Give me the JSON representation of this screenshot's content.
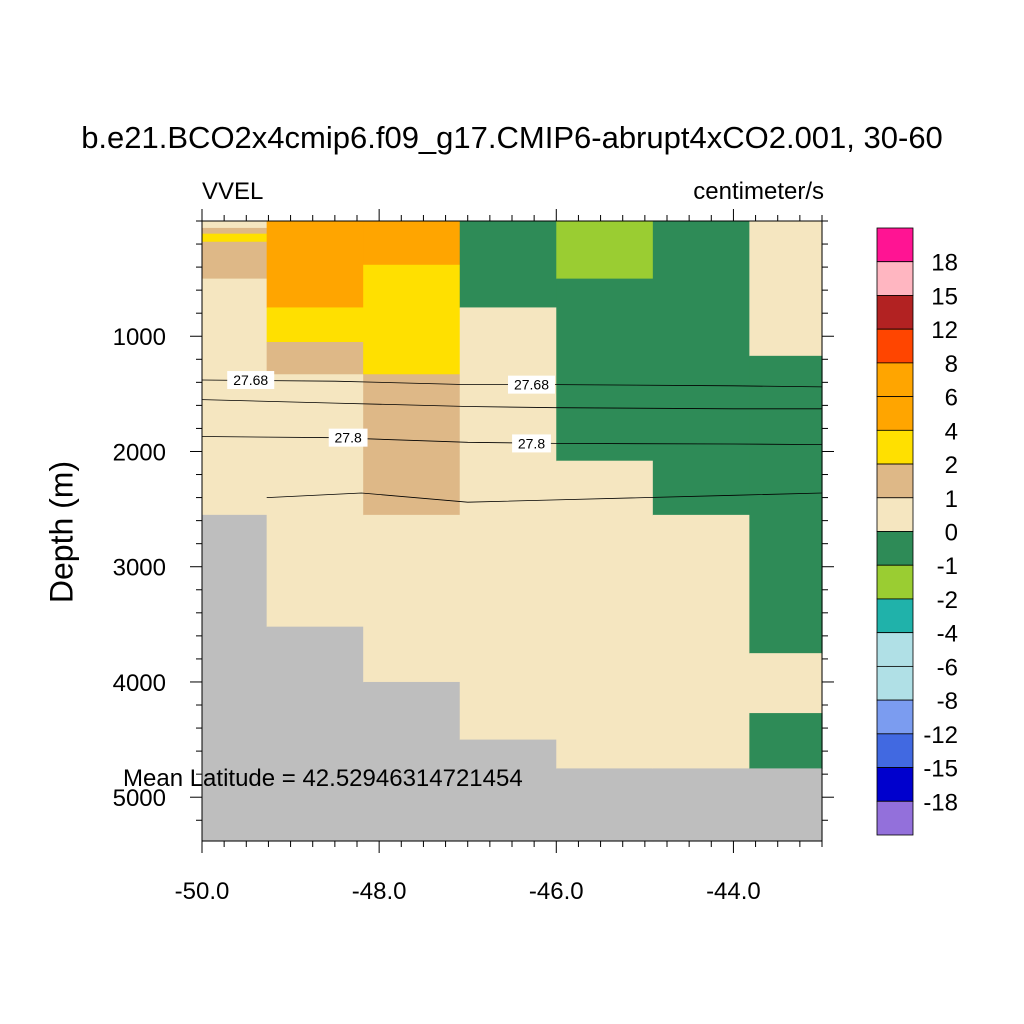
{
  "chart_data": {
    "type": "heatmap",
    "title": "b.e21.BCO2x4cmip6.f09_g17.CMIP6-abrupt4xCO2.001, 30-60",
    "variable": "VVEL",
    "units": "centimeter/s",
    "ylabel": "Depth (m)",
    "xlabel": "",
    "xlim": [
      -50.0,
      -43.0
    ],
    "ylim": [
      5380,
      0
    ],
    "x_ticks": [
      "-50.0",
      "-48.0",
      "-46.0",
      "-44.0"
    ],
    "x_tick_values": [
      -50.0,
      -48.0,
      -46.0,
      -44.0
    ],
    "y_ticks": [
      "1000",
      "2000",
      "3000",
      "4000",
      "5000"
    ],
    "y_tick_values": [
      1000,
      2000,
      3000,
      4000,
      5000
    ],
    "annotation": "Mean Latitude = 42.52946314721454",
    "missing_color": "#BEBEBE",
    "colorbar": {
      "labels": [
        "18",
        "15",
        "12",
        "8",
        "6",
        "4",
        "2",
        "1",
        "0",
        "-1",
        "-2",
        "-4",
        "-6",
        "-8",
        "-12",
        "-15",
        "-18"
      ],
      "colors": [
        "#FF1493",
        "#FFB6C1",
        "#B22222",
        "#FF4500",
        "#FFA500",
        "#FFA500",
        "#FFE000",
        "#DEB887",
        "#F5E6C0",
        "#2E8B57",
        "#9ACD32",
        "#20B2AA",
        "#B0E0E6",
        "#B0E0E6",
        "#7B9CF0",
        "#4169E1",
        "#0000CD",
        "#9370DB"
      ]
    },
    "cells": [
      {
        "x": [
          -50.0,
          -49.27
        ],
        "z": [
          0,
          60
        ],
        "value": "0 to 1"
      },
      {
        "x": [
          -50.0,
          -49.27
        ],
        "z": [
          60,
          110
        ],
        "value": "1 to 2"
      },
      {
        "x": [
          -50.0,
          -49.27
        ],
        "z": [
          110,
          180
        ],
        "value": "2 to 4"
      },
      {
        "x": [
          -50.0,
          -49.27
        ],
        "z": [
          180,
          500
        ],
        "value": "1 to 2"
      },
      {
        "x": [
          -50.0,
          -49.27
        ],
        "z": [
          500,
          2550
        ],
        "value": "0 to 1"
      },
      {
        "x": [
          -50.0,
          -49.27
        ],
        "z": [
          2550,
          5380
        ],
        "value": "missing"
      },
      {
        "x": [
          -49.27,
          -48.18
        ],
        "z": [
          0,
          750
        ],
        "value": "4 to 6"
      },
      {
        "x": [
          -49.27,
          -48.18
        ],
        "z": [
          750,
          1050
        ],
        "value": "2 to 4"
      },
      {
        "x": [
          -49.27,
          -48.18
        ],
        "z": [
          1050,
          1330
        ],
        "value": "1 to 2"
      },
      {
        "x": [
          -49.27,
          -48.18
        ],
        "z": [
          1330,
          3520
        ],
        "value": "0 to 1"
      },
      {
        "x": [
          -49.27,
          -48.18
        ],
        "z": [
          3520,
          5380
        ],
        "value": "missing"
      },
      {
        "x": [
          -48.18,
          -47.09
        ],
        "z": [
          0,
          380
        ],
        "value": "4 to 6"
      },
      {
        "x": [
          -48.18,
          -47.09
        ],
        "z": [
          380,
          1330
        ],
        "value": "2 to 4"
      },
      {
        "x": [
          -48.18,
          -47.09
        ],
        "z": [
          1330,
          2550
        ],
        "value": "1 to 2"
      },
      {
        "x": [
          -48.18,
          -47.09
        ],
        "z": [
          2550,
          4000
        ],
        "value": "0 to 1"
      },
      {
        "x": [
          -48.18,
          -47.09
        ],
        "z": [
          4000,
          5380
        ],
        "value": "missing"
      },
      {
        "x": [
          -47.09,
          -46.0
        ],
        "z": [
          0,
          750
        ],
        "value": "-1 to 0"
      },
      {
        "x": [
          -47.09,
          -46.0
        ],
        "z": [
          750,
          4500
        ],
        "value": "0 to 1"
      },
      {
        "x": [
          -47.09,
          -46.0
        ],
        "z": [
          4500,
          5380
        ],
        "value": "missing"
      },
      {
        "x": [
          -46.0,
          -44.91
        ],
        "z": [
          0,
          500
        ],
        "value": "-2 to -1"
      },
      {
        "x": [
          -46.0,
          -44.91
        ],
        "z": [
          500,
          2080
        ],
        "value": "-1 to 0"
      },
      {
        "x": [
          -46.0,
          -44.91
        ],
        "z": [
          2080,
          4750
        ],
        "value": "0 to 1"
      },
      {
        "x": [
          -46.0,
          -44.91
        ],
        "z": [
          4750,
          5380
        ],
        "value": "missing"
      },
      {
        "x": [
          -44.91,
          -43.82
        ],
        "z": [
          0,
          2550
        ],
        "value": "-1 to 0"
      },
      {
        "x": [
          -44.91,
          -43.82
        ],
        "z": [
          2550,
          4750
        ],
        "value": "0 to 1"
      },
      {
        "x": [
          -44.91,
          -43.82
        ],
        "z": [
          4750,
          5380
        ],
        "value": "missing"
      },
      {
        "x": [
          -43.82,
          -43.0
        ],
        "z": [
          0,
          1170
        ],
        "value": "0 to 1"
      },
      {
        "x": [
          -43.82,
          -43.0
        ],
        "z": [
          1170,
          3750
        ],
        "value": "-1 to 0"
      },
      {
        "x": [
          -43.82,
          -43.0
        ],
        "z": [
          3750,
          4270
        ],
        "value": "0 to 1"
      },
      {
        "x": [
          -43.82,
          -43.0
        ],
        "z": [
          4270,
          4750
        ],
        "value": "-1 to 0"
      },
      {
        "x": [
          -43.82,
          -43.0
        ],
        "z": [
          4750,
          5380
        ],
        "value": "missing"
      }
    ],
    "contours": [
      {
        "label": "27.68",
        "points": [
          [
            -50.0,
            1380
          ],
          [
            -48.5,
            1390
          ],
          [
            -47.0,
            1420
          ],
          [
            -46.0,
            1420
          ],
          [
            -44.0,
            1430
          ],
          [
            -43.0,
            1440
          ]
        ],
        "label_positions": [
          [
            -49.45,
            1380
          ],
          [
            -46.28,
            1420
          ]
        ]
      },
      {
        "label": "",
        "points": [
          [
            -50.0,
            1550
          ],
          [
            -48.5,
            1580
          ],
          [
            -47.0,
            1610
          ],
          [
            -46.0,
            1620
          ],
          [
            -44.0,
            1630
          ],
          [
            -43.0,
            1630
          ]
        ],
        "label_positions": []
      },
      {
        "label": "27.8",
        "points": [
          [
            -50.0,
            1870
          ],
          [
            -48.5,
            1880
          ],
          [
            -47.0,
            1920
          ],
          [
            -46.0,
            1930
          ],
          [
            -44.0,
            1935
          ],
          [
            -43.0,
            1940
          ]
        ],
        "label_positions": [
          [
            -48.35,
            1880
          ],
          [
            -46.28,
            1930
          ]
        ]
      },
      {
        "label": "",
        "points": [
          [
            -49.27,
            2400
          ],
          [
            -48.2,
            2360
          ],
          [
            -47.0,
            2440
          ],
          [
            -46.0,
            2420
          ],
          [
            -44.0,
            2380
          ],
          [
            -43.0,
            2360
          ]
        ],
        "label_positions": []
      }
    ]
  }
}
